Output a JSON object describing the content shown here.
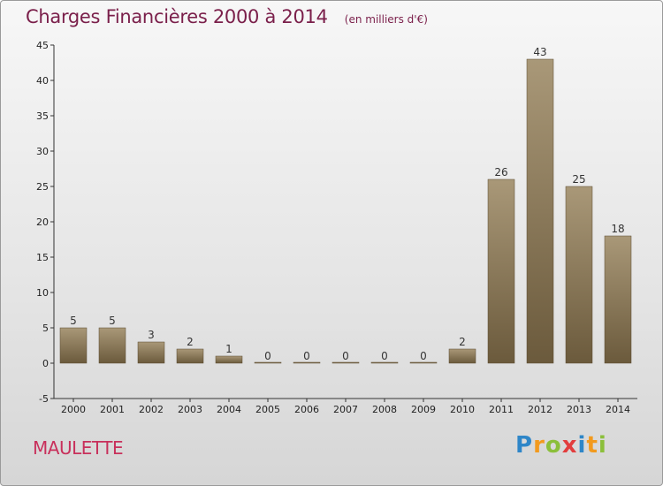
{
  "header": {
    "title": "Charges Financières 2000 à 2014",
    "subtitle": "(en milliers d'€)"
  },
  "footer": {
    "place": "MAULETTE",
    "logo": [
      "P",
      "r",
      "o",
      "x",
      "i",
      "t",
      "i"
    ]
  },
  "colors": {
    "bar_top": "#a99878",
    "bar_bottom": "#6b5a3c",
    "title": "#7a1f4a",
    "place": "#c8305b"
  },
  "chart_data": {
    "type": "bar",
    "title": "Charges Financières 2000 à 2014",
    "subtitle": "(en milliers d'€)",
    "categories": [
      "2000",
      "2001",
      "2002",
      "2003",
      "2004",
      "2005",
      "2006",
      "2007",
      "2008",
      "2009",
      "2010",
      "2011",
      "2012",
      "2013",
      "2014"
    ],
    "values": [
      5,
      5,
      3,
      2,
      1,
      0,
      0,
      0,
      0,
      0,
      2,
      26,
      43,
      25,
      18
    ],
    "ylim": [
      -5,
      45
    ],
    "yticks": [
      -5,
      0,
      5,
      10,
      15,
      20,
      25,
      30,
      35,
      40,
      45
    ],
    "grid": false,
    "legend": "none"
  }
}
